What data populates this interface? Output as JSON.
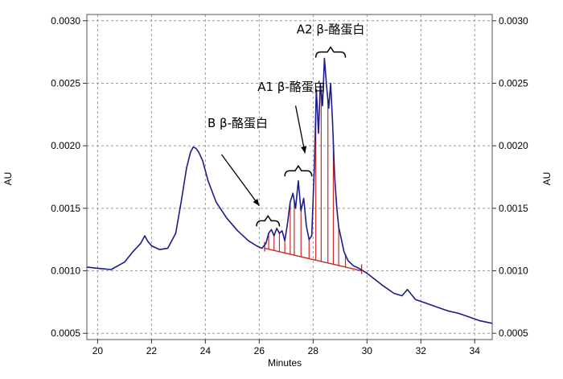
{
  "chart_data": {
    "type": "line",
    "xlabel": "Minutes",
    "ylabel_left": "AU",
    "ylabel_right": "AU",
    "xlim": [
      19.6,
      34.65
    ],
    "ylim": [
      0.00045,
      0.00305
    ],
    "x_ticks": [
      20,
      22,
      24,
      26,
      28,
      30,
      32,
      34
    ],
    "y_ticks": [
      0.0005,
      0.001,
      0.0015,
      0.002,
      0.0025,
      0.003
    ],
    "y_tick_labels": [
      "0.0005",
      "0.0010",
      "0.0015",
      "0.0020",
      "0.0025",
      "0.0030"
    ],
    "grid": true,
    "trace_color": "#1c1c8c",
    "integration_color": "#cc2a2a",
    "series": [
      {
        "x": [
          19.6,
          20.0,
          20.5,
          21.0,
          21.3,
          21.6,
          21.75,
          21.85,
          22.0,
          22.3,
          22.6,
          22.9,
          23.1,
          23.3,
          23.45,
          23.55,
          23.65,
          23.75,
          23.9,
          24.1,
          24.4,
          24.8,
          25.2,
          25.6,
          25.9,
          26.1,
          26.25,
          26.35,
          26.45,
          26.55,
          26.65,
          26.75,
          26.85,
          26.95,
          27.05,
          27.15,
          27.25,
          27.35,
          27.45,
          27.55,
          27.65,
          27.75,
          27.85,
          27.95,
          28.05,
          28.12,
          28.2,
          28.27,
          28.35,
          28.42,
          28.5,
          28.58,
          28.65,
          28.72,
          28.8,
          28.88,
          28.95,
          29.05,
          29.15,
          29.3,
          29.5,
          29.7,
          29.85,
          30.0,
          30.3,
          30.6,
          31.0,
          31.3,
          31.5,
          31.8,
          32.2,
          32.6,
          33.0,
          33.4,
          33.8,
          34.2,
          34.65
        ],
        "y": [
          0.00103,
          0.00102,
          0.00101,
          0.00107,
          0.00115,
          0.00122,
          0.00128,
          0.00124,
          0.0012,
          0.00117,
          0.00118,
          0.0013,
          0.00155,
          0.00182,
          0.00195,
          0.00199,
          0.00198,
          0.00195,
          0.00188,
          0.00172,
          0.00155,
          0.00142,
          0.00132,
          0.00124,
          0.0012,
          0.00118,
          0.00122,
          0.0013,
          0.00133,
          0.00128,
          0.00134,
          0.0013,
          0.00132,
          0.00124,
          0.00138,
          0.00155,
          0.00162,
          0.0015,
          0.00172,
          0.00148,
          0.00158,
          0.00136,
          0.00125,
          0.00128,
          0.00185,
          0.00245,
          0.0021,
          0.0025,
          0.00232,
          0.0027,
          0.00248,
          0.0023,
          0.0025,
          0.0022,
          0.00175,
          0.0015,
          0.00135,
          0.00125,
          0.00115,
          0.00108,
          0.00104,
          0.00102,
          0.001,
          0.00098,
          0.00093,
          0.00088,
          0.00082,
          0.0008,
          0.00085,
          0.00077,
          0.00074,
          0.00071,
          0.00068,
          0.00066,
          0.00063,
          0.0006,
          0.00058
        ]
      }
    ],
    "baseline": {
      "x": [
        26.2,
        29.8
      ],
      "y": [
        0.00118,
        0.001
      ]
    },
    "peak_drops": [
      26.35,
      26.55,
      26.75,
      26.95,
      27.15,
      27.3,
      27.55,
      27.85,
      28.1,
      28.3,
      28.55,
      28.75,
      28.95,
      29.2
    ],
    "annotations": [
      {
        "text": "A2 β-酪蛋白",
        "x": 28.65,
        "y": 0.0029,
        "bracket": [
          28.1,
          29.2
        ],
        "bracket_y": 0.00275
      },
      {
        "text": "A1 β-酪蛋白",
        "x": 27.2,
        "y": 0.00244,
        "bracket": [
          26.95,
          27.95
        ],
        "bracket_y": 0.0018,
        "arrow_from": [
          27.35,
          0.00232
        ],
        "arrow_to": [
          27.7,
          0.00194
        ]
      },
      {
        "text": "B β-酪蛋白",
        "x": 25.2,
        "y": 0.00215,
        "bracket": [
          25.9,
          26.75
        ],
        "bracket_y": 0.0014,
        "arrow_from": [
          24.6,
          0.00193
        ],
        "arrow_to": [
          26.0,
          0.00152
        ]
      }
    ]
  }
}
